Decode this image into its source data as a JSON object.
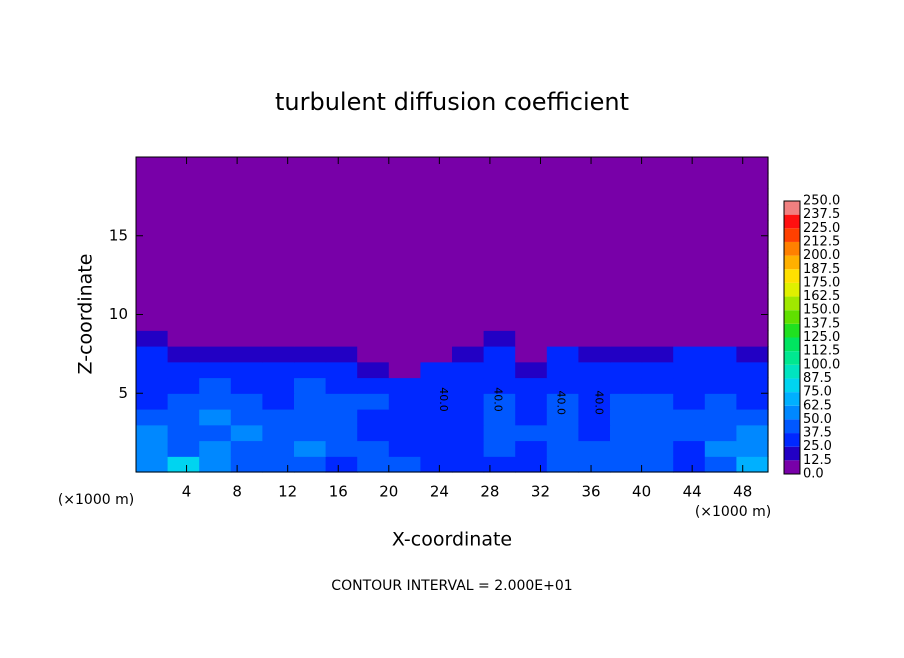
{
  "chart_data": {
    "type": "contour",
    "title": "turbulent diffusion coefficient",
    "x_label": "X-coordinate",
    "y_label": "Z-coordinate",
    "x_unit_labels": [
      "(×1000 m)",
      "(×1000 m)"
    ],
    "annotation": "CONTOUR INTERVAL = 2.000E+01",
    "xlim": [
      0,
      50
    ],
    "ylim": [
      0,
      20
    ],
    "xticks": [
      4,
      8,
      12,
      16,
      20,
      24,
      28,
      32,
      36,
      40,
      44,
      48
    ],
    "yticks": [
      5,
      10,
      15
    ],
    "levels": [
      {
        "value": 0,
        "label": "0.0"
      },
      12.5,
      {
        "value": 25,
        "label": "25.0"
      },
      37.5,
      {
        "value": 50,
        "label": "50.0"
      },
      62.5,
      {
        "value": 75,
        "label": "75.0"
      },
      87.5,
      {
        "value": 100,
        "label": "100.0"
      },
      112.5,
      {
        "value": 125,
        "label": "125.0"
      },
      137.5,
      {
        "value": 150,
        "label": "150.0"
      },
      162.5,
      {
        "value": 175,
        "label": "175.0"
      },
      187.5,
      {
        "value": 200,
        "label": "200.0"
      },
      212.5,
      {
        "value": 225,
        "label": "225.0"
      },
      237.5,
      {
        "value": 250,
        "label": "250.0"
      }
    ],
    "colors": [
      "#7800a8",
      "#2200c4",
      "#0028ff",
      "#0058ff",
      "#0088ff",
      "#00b0ff",
      "#00d4f0",
      "#00e4c0",
      "#00e890",
      "#00e460",
      "#20e020",
      "#60e000",
      "#a0e800",
      "#e0f000",
      "#ffe000",
      "#ffb000",
      "#ff8000",
      "#ff4000",
      "#ff1010",
      "#f08080"
    ],
    "field": [
      [
        55,
        80,
        50,
        45,
        40,
        45,
        35,
        40,
        45,
        30,
        30,
        35,
        30,
        40,
        40,
        40,
        40,
        35,
        45,
        70
      ],
      [
        60,
        45,
        50,
        40,
        45,
        50,
        40,
        40,
        35,
        30,
        35,
        40,
        35,
        45,
        40,
        45,
        40,
        35,
        50,
        55
      ],
      [
        50,
        40,
        45,
        55,
        40,
        45,
        40,
        35,
        30,
        30,
        35,
        40,
        40,
        45,
        35,
        45,
        45,
        40,
        45,
        50
      ],
      [
        40,
        45,
        50,
        45,
        40,
        40,
        45,
        35,
        30,
        30,
        35,
        40,
        30,
        40,
        35,
        45,
        45,
        40,
        45,
        40
      ],
      [
        35,
        40,
        45,
        40,
        35,
        45,
        40,
        40,
        30,
        35,
        35,
        40,
        30,
        40,
        35,
        40,
        40,
        35,
        40,
        35
      ],
      [
        30,
        35,
        40,
        35,
        30,
        40,
        35,
        35,
        25,
        35,
        35,
        35,
        25,
        35,
        35,
        35,
        35,
        30,
        35,
        30
      ],
      [
        25,
        30,
        35,
        30,
        30,
        30,
        25,
        20,
        10,
        30,
        30,
        30,
        20,
        30,
        30,
        30,
        30,
        30,
        30,
        30
      ],
      [
        25,
        20,
        20,
        15,
        20,
        20,
        15,
        5,
        0,
        10,
        20,
        25,
        10,
        25,
        20,
        20,
        20,
        25,
        25,
        20
      ],
      [
        20,
        5,
        0,
        0,
        0,
        0,
        0,
        0,
        0,
        0,
        5,
        20,
        0,
        10,
        10,
        0,
        0,
        5,
        10,
        5
      ],
      [
        0,
        0,
        0,
        0,
        0,
        0,
        0,
        0,
        0,
        0,
        0,
        0,
        0,
        0,
        0,
        0,
        0,
        0,
        0,
        0
      ],
      [
        0,
        0,
        0,
        0,
        0,
        0,
        0,
        0,
        0,
        0,
        0,
        0,
        0,
        0,
        0,
        0,
        0,
        0,
        0,
        0
      ],
      [
        0,
        0,
        0,
        0,
        0,
        0,
        0,
        0,
        0,
        0,
        0,
        0,
        0,
        0,
        0,
        0,
        0,
        0,
        0,
        0
      ],
      [
        0,
        0,
        0,
        0,
        0,
        0,
        0,
        0,
        0,
        0,
        0,
        0,
        0,
        0,
        0,
        0,
        0,
        0,
        0,
        0
      ],
      [
        0,
        0,
        0,
        0,
        0,
        0,
        0,
        0,
        0,
        0,
        0,
        0,
        0,
        0,
        0,
        0,
        0,
        0,
        0,
        0
      ],
      [
        0,
        0,
        0,
        0,
        0,
        0,
        0,
        0,
        0,
        0,
        0,
        0,
        0,
        0,
        0,
        0,
        0,
        0,
        0,
        0
      ],
      [
        0,
        0,
        0,
        0,
        0,
        0,
        0,
        0,
        0,
        0,
        0,
        0,
        0,
        0,
        0,
        0,
        0,
        0,
        0,
        0
      ],
      [
        0,
        0,
        0,
        0,
        0,
        0,
        0,
        0,
        0,
        0,
        0,
        0,
        0,
        0,
        0,
        0,
        0,
        0,
        0,
        0
      ],
      [
        0,
        0,
        0,
        0,
        0,
        0,
        0,
        0,
        0,
        0,
        0,
        0,
        0,
        0,
        0,
        0,
        0,
        0,
        0,
        0
      ],
      [
        0,
        0,
        0,
        0,
        0,
        0,
        0,
        0,
        0,
        0,
        0,
        0,
        0,
        0,
        0,
        0,
        0,
        0,
        0,
        0
      ],
      [
        0,
        0,
        0,
        0,
        0,
        0,
        0,
        0,
        0,
        0,
        0,
        0,
        0,
        0,
        0,
        0,
        0,
        0,
        0,
        0
      ]
    ],
    "contour_labels": [
      {
        "x": 24.3,
        "z": 4.6,
        "label": "40.0"
      },
      {
        "x": 28.6,
        "z": 4.6,
        "label": "40.0"
      },
      {
        "x": 33.6,
        "z": 4.4,
        "label": "40.0"
      },
      {
        "x": 36.6,
        "z": 4.4,
        "label": "40.0"
      }
    ]
  }
}
